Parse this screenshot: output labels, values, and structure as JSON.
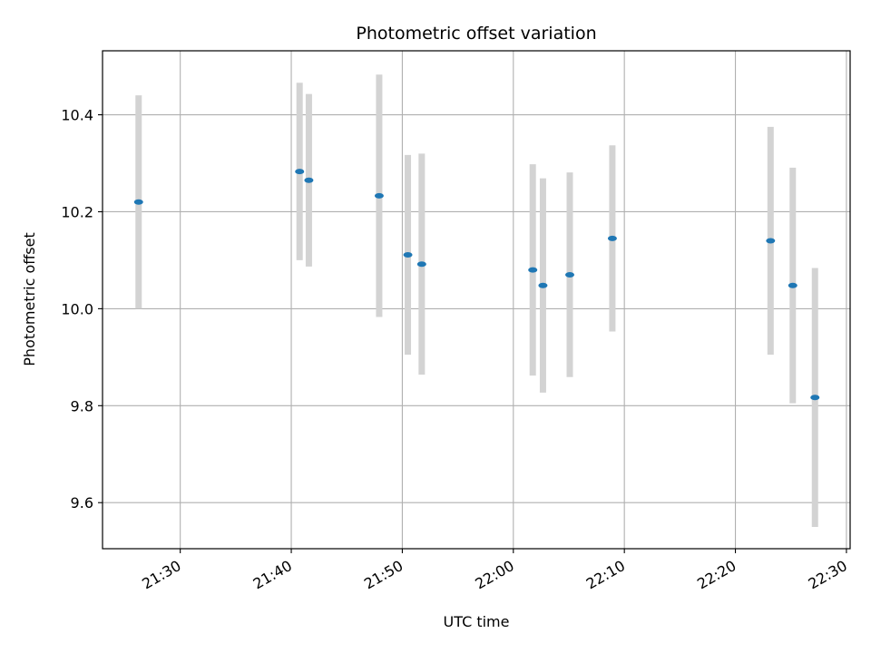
{
  "chart_data": {
    "type": "scatter",
    "title": "Photometric offset variation",
    "xlabel": "UTC time",
    "ylabel": "Photometric offset",
    "x_tick_labels": [
      "21:30",
      "21:40",
      "21:50",
      "22:00",
      "22:10",
      "22:20",
      "22:30"
    ],
    "y_tick_labels": [
      "9.6",
      "9.8",
      "10.0",
      "10.2",
      "10.4"
    ],
    "x_range": [
      "21:23:00",
      "22:30:20"
    ],
    "ylim": [
      9.505,
      10.532
    ],
    "grid": true,
    "marker_color": "#1f77b4",
    "errorbar_color": "#d3d3d3",
    "series": [
      {
        "points": [
          {
            "x": "21:26:15",
            "y": 10.22,
            "err": 0.22
          },
          {
            "x": "21:40:45",
            "y": 10.283,
            "err": 0.183
          },
          {
            "x": "21:41:35",
            "y": 10.265,
            "err": 0.178
          },
          {
            "x": "21:47:55",
            "y": 10.233,
            "err": 0.25
          },
          {
            "x": "21:50:30",
            "y": 10.111,
            "err": 0.206
          },
          {
            "x": "21:51:45",
            "y": 10.092,
            "err": 0.228
          },
          {
            "x": "22:01:45",
            "y": 10.08,
            "err": 0.218
          },
          {
            "x": "22:02:40",
            "y": 10.048,
            "err": 0.221
          },
          {
            "x": "22:05:05",
            "y": 10.07,
            "err": 0.211
          },
          {
            "x": "22:08:55",
            "y": 10.145,
            "err": 0.192
          },
          {
            "x": "22:23:10",
            "y": 10.14,
            "err": 0.235
          },
          {
            "x": "22:25:10",
            "y": 10.048,
            "err": 0.243
          },
          {
            "x": "22:27:10",
            "y": 9.817,
            "err": 0.267
          }
        ]
      }
    ]
  }
}
